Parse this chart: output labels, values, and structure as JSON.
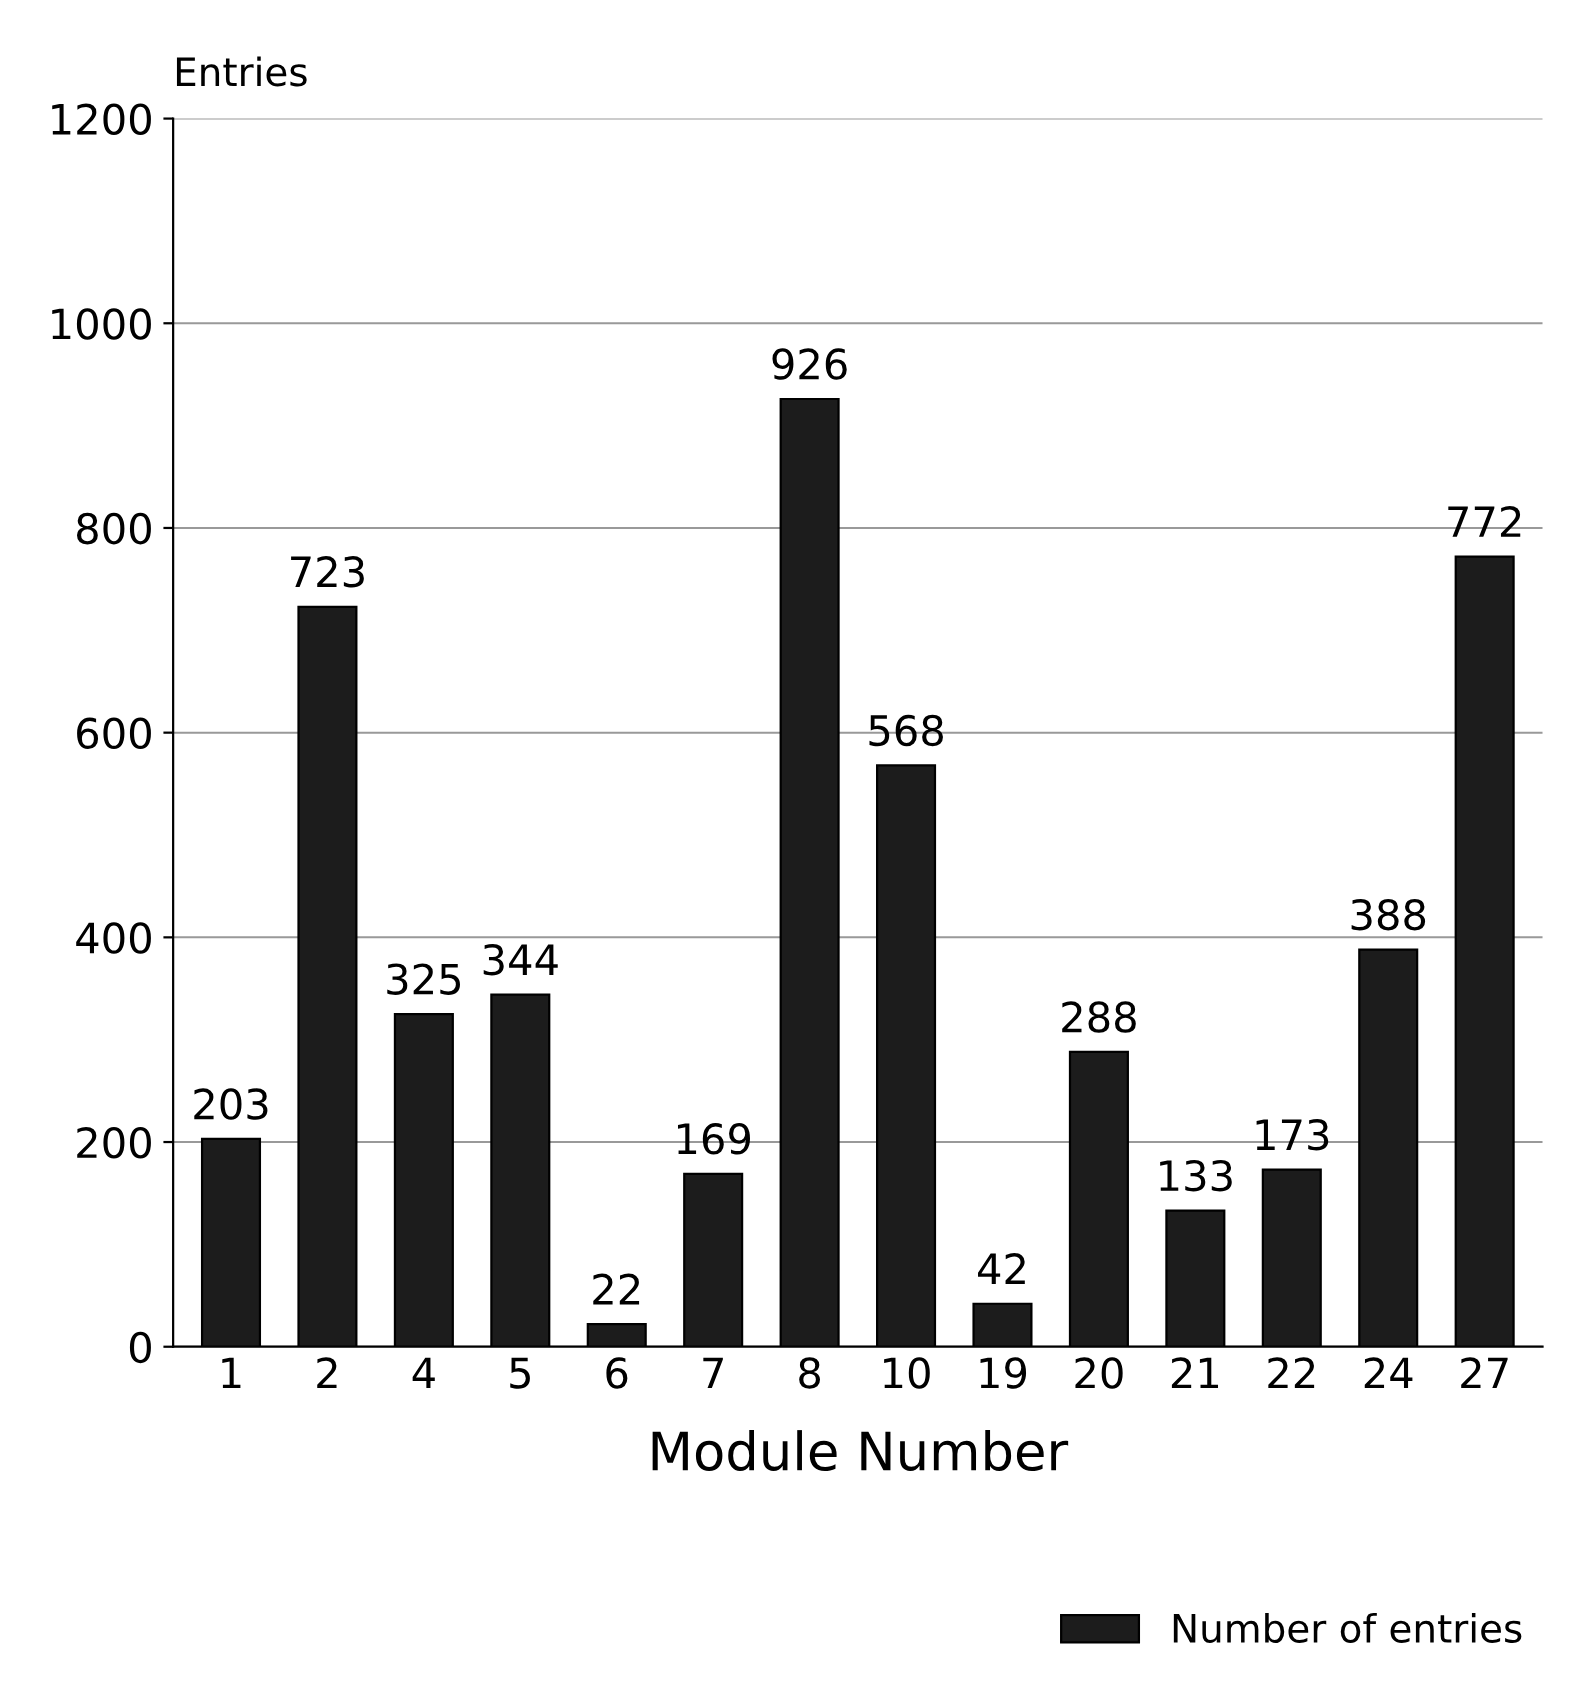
{
  "chart_data": {
    "type": "bar",
    "ylabel": "Entries",
    "xlabel": "Module Number",
    "categories": [
      "1",
      "2",
      "4",
      "5",
      "6",
      "7",
      "8",
      "10",
      "19",
      "20",
      "21",
      "22",
      "24",
      "27"
    ],
    "series": [
      {
        "name": "Number of entries",
        "color": "#1c1c1c",
        "values": [
          203,
          723,
          325,
          344,
          22,
          169,
          926,
          568,
          42,
          288,
          133,
          173,
          388,
          772
        ]
      }
    ],
    "ylim": [
      0,
      1200
    ],
    "yticks": [
      0,
      200,
      400,
      600,
      800,
      1000,
      1200
    ],
    "grid": "y",
    "data_labels": true,
    "legend": "bottom right"
  }
}
